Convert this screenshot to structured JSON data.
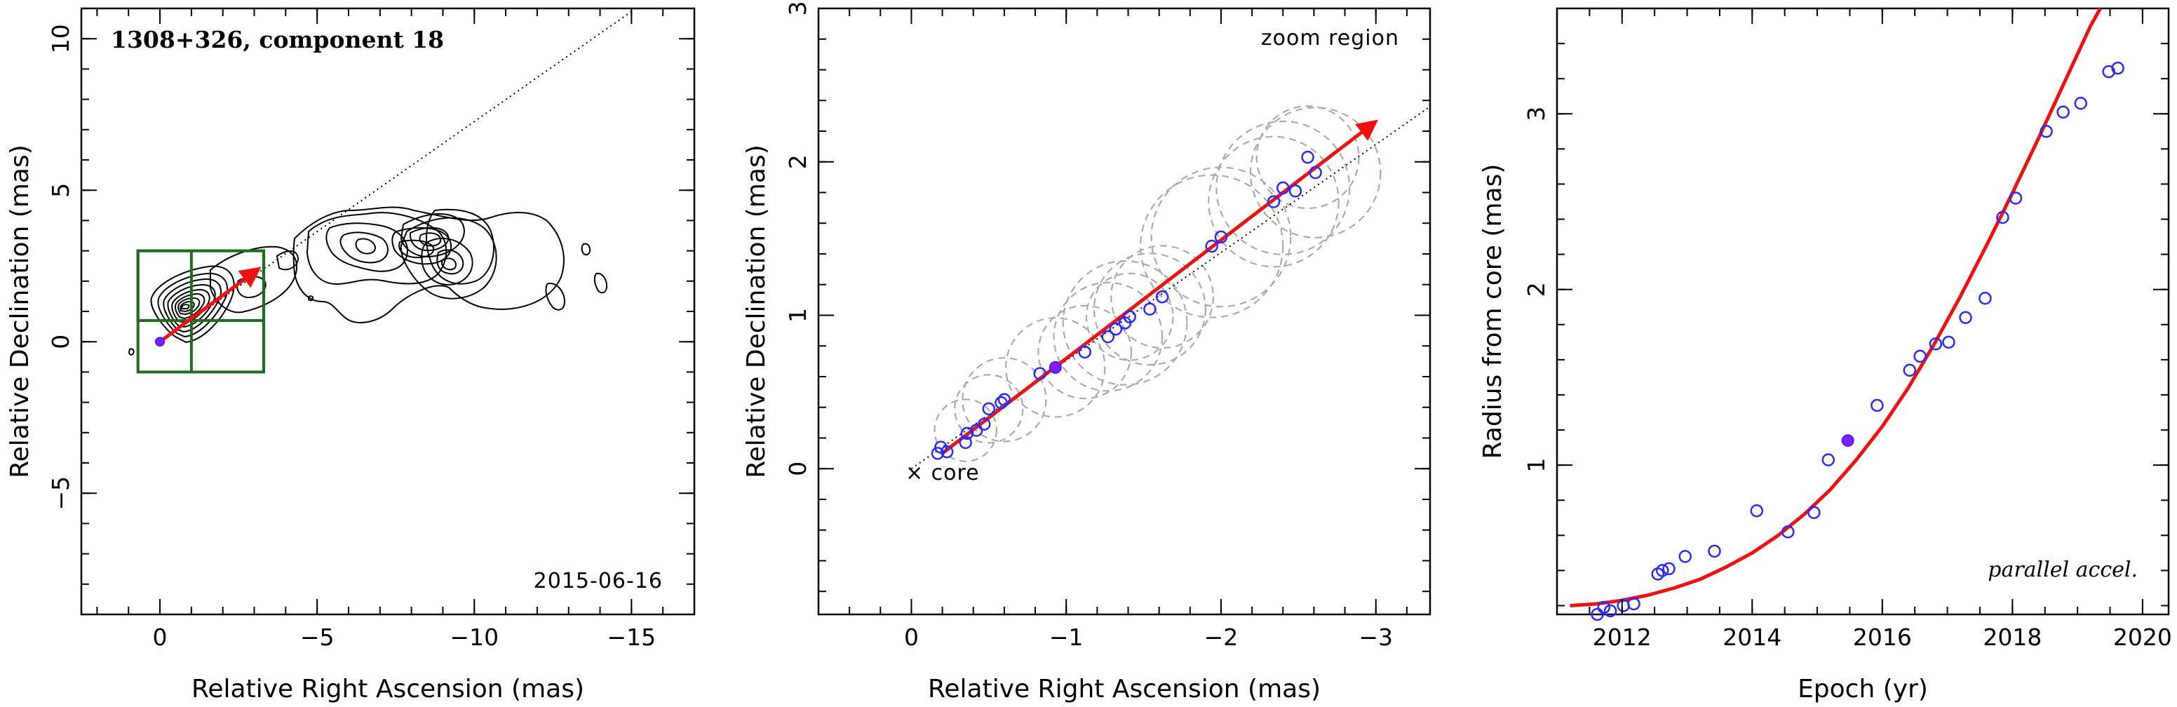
{
  "colors": {
    "fit": "#ee1111",
    "points": "#2a2aff",
    "selected": "#7b1fff",
    "box": "#1f6b1f",
    "circles": "#aaaaaa"
  },
  "chart_data": [
    {
      "type": "contour",
      "title": "1308+326, component 18",
      "date_label": "2015-06-16",
      "xlabel": "Relative Right Ascension (mas)",
      "ylabel": "Relative Declination (mas)",
      "xlim": [
        2.5,
        -17
      ],
      "ylim": [
        -9,
        11
      ],
      "xticks": [
        0,
        -5,
        -10,
        -15
      ],
      "xtick_labels": [
        "0",
        "−5",
        "−10",
        "−15"
      ],
      "yticks": [
        -5,
        0,
        5,
        10
      ],
      "ytick_labels": [
        "−5",
        "0",
        "5",
        "10"
      ],
      "core": [
        0,
        0
      ],
      "trajectory_line": {
        "from": [
          0,
          0
        ],
        "to": [
          -15,
          10.9
        ]
      },
      "arrow": {
        "from": [
          0,
          0
        ],
        "to": [
          -3.0,
          2.3
        ]
      },
      "zoom_boxes": [
        {
          "x0": 0.7,
          "x1": -3.3,
          "y0": -1.0,
          "y1": 3.0
        },
        {
          "x0": 0.7,
          "x1": -3.3,
          "y0": 0.7,
          "y1": 3.0
        },
        {
          "x0": -1.0,
          "x1": -1.0,
          "y0": -1.0,
          "y1": 3.0
        }
      ]
    },
    {
      "type": "scatter",
      "annotation": "zoom region",
      "core_label": "× core",
      "xlabel": "Relative Right Ascension (mas)",
      "ylabel": "Relative Declination (mas)",
      "xlim": [
        0.6,
        -3.35
      ],
      "ylim": [
        -0.95,
        3.0
      ],
      "xticks": [
        0,
        -1,
        -2,
        -3
      ],
      "xtick_labels": [
        "0",
        "−1",
        "−2",
        "−3"
      ],
      "yticks": [
        0,
        1,
        2,
        3
      ],
      "ytick_labels": [
        "0",
        "1",
        "2",
        "3"
      ],
      "trajectory_line": {
        "from": [
          0,
          0
        ],
        "to": [
          -3.35,
          2.36
        ]
      },
      "arrow": {
        "from": [
          -0.2,
          0.1
        ],
        "to": [
          -2.97,
          2.24
        ]
      },
      "positions": [
        [
          -0.17,
          0.1
        ],
        [
          -0.19,
          0.14
        ],
        [
          -0.23,
          0.11
        ],
        [
          -0.35,
          0.17
        ],
        [
          -0.36,
          0.23
        ],
        [
          -0.42,
          0.25
        ],
        [
          -0.47,
          0.29
        ],
        [
          -0.5,
          0.39
        ],
        [
          -0.58,
          0.43
        ],
        [
          -0.6,
          0.45
        ],
        [
          -0.83,
          0.62
        ],
        [
          -0.93,
          0.66
        ],
        [
          -1.12,
          0.76
        ],
        [
          -1.27,
          0.86
        ],
        [
          -1.32,
          0.91
        ],
        [
          -1.38,
          0.95
        ],
        [
          -1.41,
          0.99
        ],
        [
          -1.54,
          1.04
        ],
        [
          -1.62,
          1.12
        ],
        [
          -1.94,
          1.45
        ],
        [
          -2.0,
          1.51
        ],
        [
          -2.34,
          1.74
        ],
        [
          -2.4,
          1.83
        ],
        [
          -2.48,
          1.81
        ],
        [
          -2.56,
          2.03
        ],
        [
          -2.61,
          1.93
        ]
      ],
      "selected_index": 11,
      "uncertainty_circles": [
        {
          "x": -0.35,
          "y": 0.25,
          "r": 0.2
        },
        {
          "x": -0.5,
          "y": 0.39,
          "r": 0.22
        },
        {
          "x": -0.6,
          "y": 0.45,
          "r": 0.27
        },
        {
          "x": -0.93,
          "y": 0.66,
          "r": 0.32
        },
        {
          "x": -1.12,
          "y": 0.76,
          "r": 0.3
        },
        {
          "x": -1.27,
          "y": 0.86,
          "r": 0.35
        },
        {
          "x": -1.38,
          "y": 0.95,
          "r": 0.4
        },
        {
          "x": -1.41,
          "y": 0.99,
          "r": 0.28
        },
        {
          "x": -1.54,
          "y": 1.04,
          "r": 0.36
        },
        {
          "x": -1.62,
          "y": 1.12,
          "r": 0.33
        },
        {
          "x": -1.94,
          "y": 1.45,
          "r": 0.46
        },
        {
          "x": -2.0,
          "y": 1.51,
          "r": 0.45
        },
        {
          "x": -2.34,
          "y": 1.74,
          "r": 0.42
        },
        {
          "x": -2.4,
          "y": 1.83,
          "r": 0.43
        },
        {
          "x": -2.56,
          "y": 2.03,
          "r": 0.33
        },
        {
          "x": -2.61,
          "y": 1.93,
          "r": 0.42
        }
      ]
    },
    {
      "type": "scatter",
      "annotation": "parallel accel.",
      "xlabel": "Epoch (yr)",
      "ylabel": "Radius from core (mas)",
      "xlim": [
        2011.0,
        2020.4
      ],
      "ylim": [
        0.15,
        3.6
      ],
      "xticks": [
        2012,
        2014,
        2016,
        2018,
        2020
      ],
      "xtick_labels": [
        "2012",
        "2014",
        "2016",
        "2018",
        "2020"
      ],
      "yticks": [
        1,
        2,
        3
      ],
      "ytick_labels": [
        "1",
        "2",
        "3"
      ],
      "points": [
        [
          2011.62,
          0.15
        ],
        [
          2011.72,
          0.19
        ],
        [
          2011.82,
          0.17
        ],
        [
          2012.02,
          0.2
        ],
        [
          2012.18,
          0.21
        ],
        [
          2012.55,
          0.38
        ],
        [
          2012.62,
          0.4
        ],
        [
          2012.72,
          0.41
        ],
        [
          2012.97,
          0.48
        ],
        [
          2013.42,
          0.51
        ],
        [
          2014.07,
          0.74
        ],
        [
          2014.55,
          0.62
        ],
        [
          2014.95,
          0.73
        ],
        [
          2015.17,
          1.03
        ],
        [
          2015.92,
          1.34
        ],
        [
          2016.42,
          1.54
        ],
        [
          2016.58,
          1.62
        ],
        [
          2016.82,
          1.69
        ],
        [
          2017.02,
          1.7
        ],
        [
          2017.28,
          1.84
        ],
        [
          2017.58,
          1.95
        ],
        [
          2017.85,
          2.41
        ],
        [
          2018.05,
          2.52
        ],
        [
          2018.52,
          2.9
        ],
        [
          2018.78,
          3.01
        ],
        [
          2019.05,
          3.06
        ],
        [
          2019.48,
          3.24
        ],
        [
          2019.62,
          3.26
        ]
      ],
      "selected_point": [
        2015.47,
        1.14
      ],
      "fit_curve": [
        [
          2011.2,
          0.2
        ],
        [
          2011.6,
          0.21
        ],
        [
          2012.0,
          0.23
        ],
        [
          2012.4,
          0.26
        ],
        [
          2012.8,
          0.3
        ],
        [
          2013.2,
          0.35
        ],
        [
          2013.6,
          0.42
        ],
        [
          2014.0,
          0.5
        ],
        [
          2014.4,
          0.6
        ],
        [
          2014.8,
          0.72
        ],
        [
          2015.2,
          0.86
        ],
        [
          2015.6,
          1.03
        ],
        [
          2016.0,
          1.22
        ],
        [
          2016.4,
          1.44
        ],
        [
          2016.8,
          1.69
        ],
        [
          2017.2,
          1.96
        ],
        [
          2017.6,
          2.25
        ],
        [
          2018.0,
          2.55
        ],
        [
          2018.4,
          2.86
        ],
        [
          2018.8,
          3.18
        ],
        [
          2019.2,
          3.5
        ],
        [
          2019.35,
          3.6
        ]
      ]
    }
  ]
}
